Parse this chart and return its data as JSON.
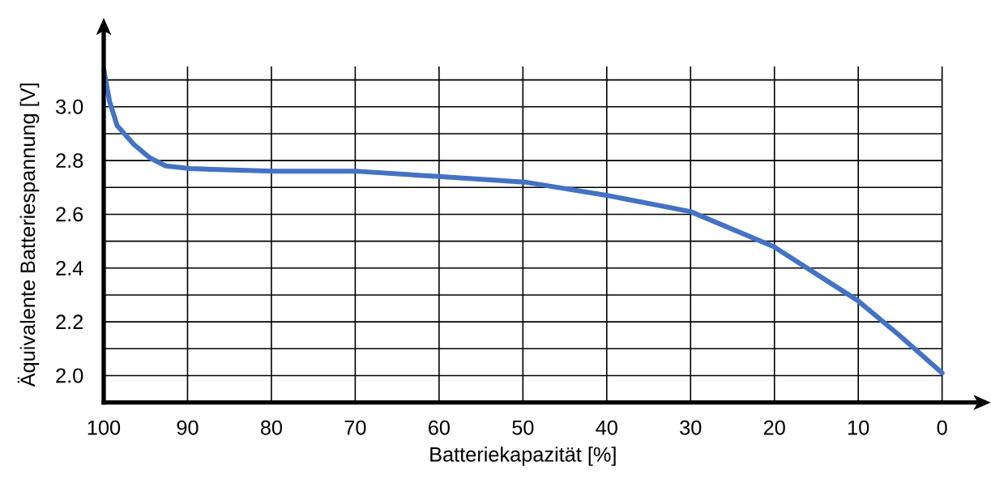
{
  "chart_data": {
    "type": "line",
    "xlabel": "Batteriekapazität [%]",
    "ylabel": "Äquivalente Batteriespannung [V]",
    "xlim": [
      100,
      0
    ],
    "ylim": [
      1.9,
      3.15
    ],
    "xticks": [
      100,
      90,
      80,
      70,
      60,
      50,
      40,
      30,
      20,
      10,
      0
    ],
    "yticks": [
      {
        "value": 2.0,
        "label": "2.0"
      },
      {
        "value": 2.1,
        "label": null
      },
      {
        "value": 2.2,
        "label": "2.2"
      },
      {
        "value": 2.3,
        "label": null
      },
      {
        "value": 2.4,
        "label": "2.4"
      },
      {
        "value": 2.5,
        "label": null
      },
      {
        "value": 2.6,
        "label": "2.6"
      },
      {
        "value": 2.7,
        "label": null
      },
      {
        "value": 2.8,
        "label": "2.8"
      },
      {
        "value": 2.9,
        "label": null
      },
      {
        "value": 3.0,
        "label": "3.0"
      },
      {
        "value": 3.1,
        "label": null
      }
    ],
    "grid": true,
    "series": [
      {
        "color": "#4472c4",
        "x": [
          100,
          99.3,
          98.4,
          96.4,
          94.5,
          92.6,
          89.7,
          79.7,
          69.7,
          59.7,
          49.8,
          39.9,
          30,
          20.1,
          10.1,
          5.1,
          0
        ],
        "values": [
          3.14,
          3.02,
          2.93,
          2.86,
          2.81,
          2.78,
          2.77,
          2.76,
          2.76,
          2.74,
          2.72,
          2.67,
          2.61,
          2.48,
          2.28,
          2.15,
          2.01
        ]
      }
    ]
  }
}
